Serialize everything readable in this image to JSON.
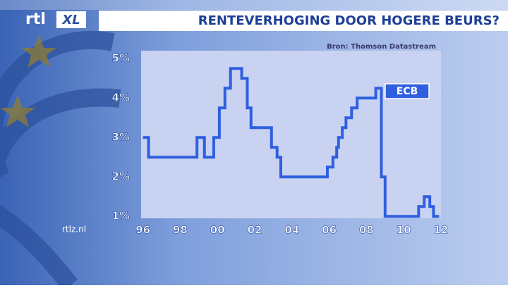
{
  "logo": {
    "left": "rtl",
    "right": "XL"
  },
  "website": "rtlz.nl",
  "chart_data": {
    "type": "line",
    "title": "RENTEVERHOGING DOOR HOGERE BEURS?",
    "source": "Bron: Thomson Datastream",
    "x": [
      1996.0,
      1996.3,
      1996.3,
      1998.9,
      1998.9,
      1999.3,
      1999.3,
      1999.8,
      1999.8,
      2000.1,
      2000.1,
      2000.4,
      2000.4,
      2000.7,
      2000.7,
      2001.3,
      2001.3,
      2001.6,
      2001.6,
      2001.8,
      2001.8,
      2002.9,
      2002.9,
      2003.2,
      2003.2,
      2003.4,
      2003.4,
      2005.9,
      2005.9,
      2006.2,
      2006.2,
      2006.4,
      2006.4,
      2006.5,
      2006.5,
      2006.7,
      2006.7,
      2006.9,
      2006.9,
      2007.2,
      2007.2,
      2007.5,
      2007.5,
      2008.5,
      2008.5,
      2008.8,
      2008.8,
      2009.0,
      2009.0,
      2010.8,
      2010.8,
      2011.1,
      2011.1,
      2011.4,
      2011.4,
      2011.6,
      2011.6,
      2011.9
    ],
    "series": [
      {
        "name": "ECB",
        "color": "#2f5fe0",
        "values": [
          3.0,
          3.0,
          2.5,
          2.5,
          3.0,
          3.0,
          2.5,
          2.5,
          3.0,
          3.0,
          3.75,
          3.75,
          4.25,
          4.25,
          4.75,
          4.75,
          4.5,
          4.5,
          3.75,
          3.75,
          3.25,
          3.25,
          2.75,
          2.75,
          2.5,
          2.5,
          2.0,
          2.0,
          2.25,
          2.25,
          2.5,
          2.5,
          2.75,
          2.75,
          3.0,
          3.0,
          3.25,
          3.25,
          3.5,
          3.5,
          3.75,
          3.75,
          4.0,
          4.0,
          4.25,
          4.25,
          2.0,
          2.0,
          1.0,
          1.0,
          1.25,
          1.25,
          1.5,
          1.5,
          1.25,
          1.25,
          1.0,
          1.0
        ]
      }
    ],
    "xlim": [
      1995.9,
      2012.0
    ],
    "ylim": [
      0.95,
      5.2
    ],
    "xticks": [
      {
        "value": 1996,
        "label": "96"
      },
      {
        "value": 1998,
        "label": "98"
      },
      {
        "value": 2000,
        "label": "00"
      },
      {
        "value": 2002,
        "label": "02"
      },
      {
        "value": 2004,
        "label": "04"
      },
      {
        "value": 2006,
        "label": "06"
      },
      {
        "value": 2008,
        "label": "08"
      },
      {
        "value": 2010,
        "label": "10"
      },
      {
        "value": 2012,
        "label": "12"
      }
    ],
    "yticks": [
      {
        "value": 1,
        "label": "1%"
      },
      {
        "value": 2,
        "label": "2%"
      },
      {
        "value": 3,
        "label": "3%"
      },
      {
        "value": 4,
        "label": "4%"
      },
      {
        "value": 5,
        "label": "5%"
      }
    ]
  }
}
